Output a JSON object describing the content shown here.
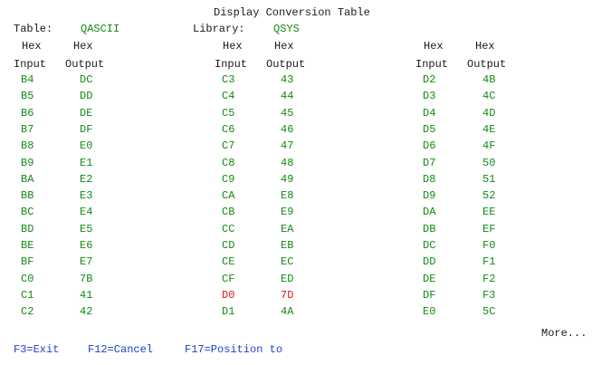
{
  "title": "Display Conversion Table",
  "table_label": "Table:",
  "table_value": "QASCII",
  "library_label": "Library:",
  "library_value": "QSYS",
  "headers": {
    "line1": "Hex",
    "line2_input": "Input",
    "line2_output": "Output"
  },
  "rows": [
    [
      [
        "B4",
        "DC"
      ],
      [
        "C3",
        "43"
      ],
      [
        "D2",
        "4B"
      ]
    ],
    [
      [
        "B5",
        "DD"
      ],
      [
        "C4",
        "44"
      ],
      [
        "D3",
        "4C"
      ]
    ],
    [
      [
        "B6",
        "DE"
      ],
      [
        "C5",
        "45"
      ],
      [
        "D4",
        "4D"
      ]
    ],
    [
      [
        "B7",
        "DF"
      ],
      [
        "C6",
        "46"
      ],
      [
        "D5",
        "4E"
      ]
    ],
    [
      [
        "B8",
        "E0"
      ],
      [
        "C7",
        "47"
      ],
      [
        "D6",
        "4F"
      ]
    ],
    [
      [
        "B9",
        "E1"
      ],
      [
        "C8",
        "48"
      ],
      [
        "D7",
        "50"
      ]
    ],
    [
      [
        "BA",
        "E2"
      ],
      [
        "C9",
        "49"
      ],
      [
        "D8",
        "51"
      ]
    ],
    [
      [
        "BB",
        "E3"
      ],
      [
        "CA",
        "E8"
      ],
      [
        "D9",
        "52"
      ]
    ],
    [
      [
        "BC",
        "E4"
      ],
      [
        "CB",
        "E9"
      ],
      [
        "DA",
        "EE"
      ]
    ],
    [
      [
        "BD",
        "E5"
      ],
      [
        "CC",
        "EA"
      ],
      [
        "DB",
        "EF"
      ]
    ],
    [
      [
        "BE",
        "E6"
      ],
      [
        "CD",
        "EB"
      ],
      [
        "DC",
        "F0"
      ]
    ],
    [
      [
        "BF",
        "E7"
      ],
      [
        "CE",
        "EC"
      ],
      [
        "DD",
        "F1"
      ]
    ],
    [
      [
        "C0",
        "7B"
      ],
      [
        "CF",
        "ED"
      ],
      [
        "DE",
        "F2"
      ]
    ],
    [
      [
        "C1",
        "41"
      ],
      [
        "D0",
        "7D"
      ],
      [
        "DF",
        "F3"
      ]
    ],
    [
      [
        "C2",
        "42"
      ],
      [
        "D1",
        "4A"
      ],
      [
        "E0",
        "5C"
      ]
    ]
  ],
  "highlighted_input": "D0",
  "more_text": "More...",
  "function_keys": [
    "F3=Exit",
    "F12=Cancel",
    "F17=Position to"
  ],
  "colors": {
    "label": "#1a1a1a",
    "value": "#138a13",
    "function_key": "#1f3fcf",
    "highlight": "#e01818",
    "background": "#ffffff"
  }
}
